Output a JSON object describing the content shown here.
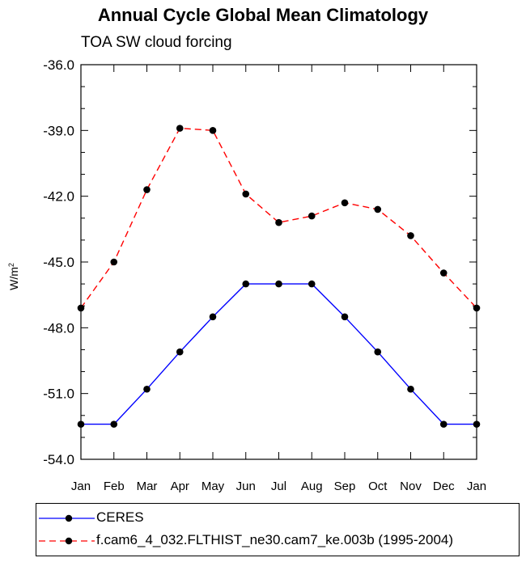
{
  "chart_data": {
    "type": "line",
    "title": "Annual Cycle Global Mean Climatology",
    "subtitle": "TOA SW cloud forcing",
    "ylabel": "W/m",
    "ylabel_sup": "2",
    "xlabel": "",
    "categories": [
      "Jan",
      "Feb",
      "Mar",
      "Apr",
      "May",
      "Jun",
      "Jul",
      "Aug",
      "Sep",
      "Oct",
      "Nov",
      "Dec",
      "Jan"
    ],
    "ylim": [
      -54.0,
      -36.0
    ],
    "yticks": [
      -36.0,
      -39.0,
      -42.0,
      -45.0,
      -48.0,
      -51.0,
      -54.0
    ],
    "ytick_labels": [
      "-36.0",
      "-39.0",
      "-42.0",
      "-45.0",
      "-48.0",
      "-51.0",
      "-54.0"
    ],
    "series": [
      {
        "name": "CERES",
        "color": "#0000ff",
        "style": "solid",
        "values": [
          -52.4,
          -52.4,
          -50.8,
          -49.1,
          -47.5,
          -46.0,
          -46.0,
          -46.0,
          -47.5,
          -49.1,
          -50.8,
          -52.4,
          -52.4
        ]
      },
      {
        "name": "f.cam6_4_032.FLTHIST_ne30.cam7_ke.003b (1995-2004)",
        "color": "#ff0000",
        "style": "dashed",
        "values": [
          -47.1,
          -45.0,
          -41.7,
          -38.9,
          -39.0,
          -41.9,
          -43.2,
          -42.9,
          -42.3,
          -42.6,
          -43.8,
          -45.5,
          -47.1
        ]
      }
    ]
  }
}
